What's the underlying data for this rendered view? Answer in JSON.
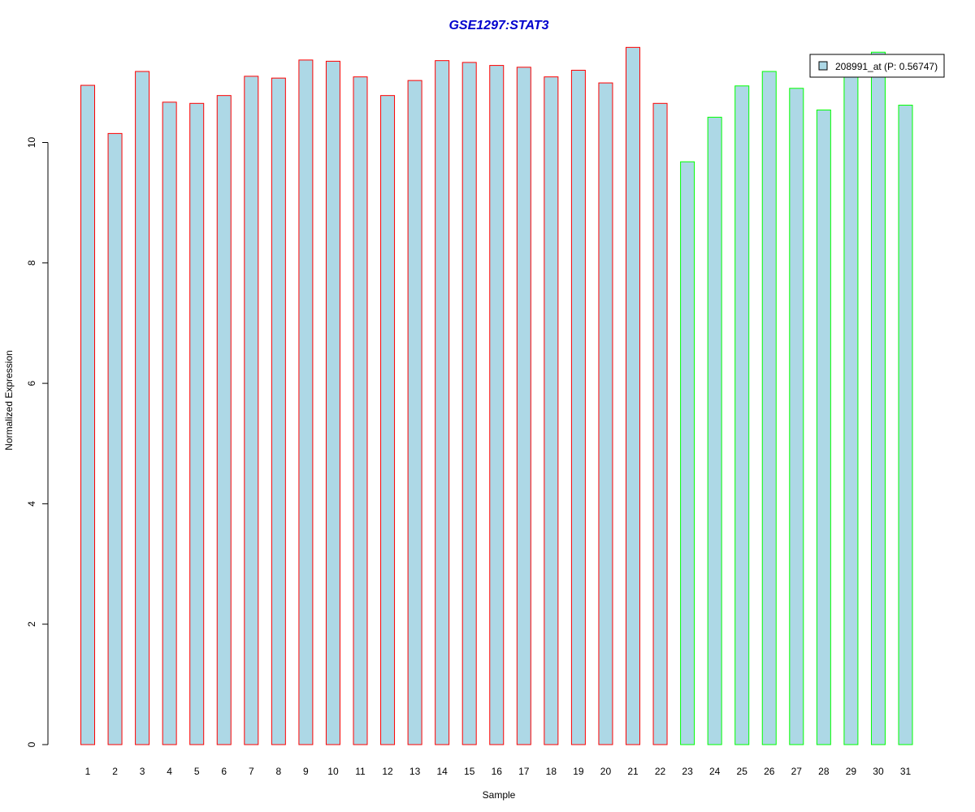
{
  "chart_data": {
    "type": "bar",
    "title": "GSE1297:STAT3",
    "xlabel": "Sample",
    "ylabel": "Normalized Expression",
    "ylim": [
      0,
      11.6
    ],
    "yticks": [
      0,
      2,
      4,
      6,
      8,
      10
    ],
    "grid": false,
    "legend": {
      "placement": "top-right",
      "label": "208991_at (P: 0.56747)"
    },
    "categories": [
      "1",
      "2",
      "3",
      "4",
      "5",
      "6",
      "7",
      "8",
      "9",
      "10",
      "11",
      "12",
      "13",
      "14",
      "15",
      "16",
      "17",
      "18",
      "19",
      "20",
      "21",
      "22",
      "23",
      "24",
      "25",
      "26",
      "27",
      "28",
      "29",
      "30",
      "31"
    ],
    "series": [
      {
        "name": "208991_at (P: 0.56747)",
        "values": [
          10.95,
          10.15,
          11.18,
          10.67,
          10.65,
          10.78,
          11.1,
          11.07,
          11.37,
          11.35,
          11.09,
          10.78,
          11.03,
          11.36,
          11.33,
          11.28,
          11.25,
          11.09,
          11.2,
          10.99,
          11.58,
          10.65,
          9.68,
          10.42,
          10.94,
          11.18,
          10.9,
          10.54,
          11.1,
          11.5,
          10.62
        ],
        "groups": [
          "a",
          "a",
          "a",
          "a",
          "a",
          "a",
          "a",
          "a",
          "a",
          "a",
          "a",
          "a",
          "a",
          "a",
          "a",
          "a",
          "a",
          "a",
          "a",
          "a",
          "a",
          "a",
          "b",
          "b",
          "b",
          "b",
          "b",
          "b",
          "b",
          "b",
          "b"
        ]
      }
    ]
  },
  "colors": {
    "title": "#0000CD",
    "bar_fill": "#ADD8E6",
    "group_a_border": "#FF0000",
    "group_b_border": "#00FF00",
    "axis": "#000000"
  }
}
